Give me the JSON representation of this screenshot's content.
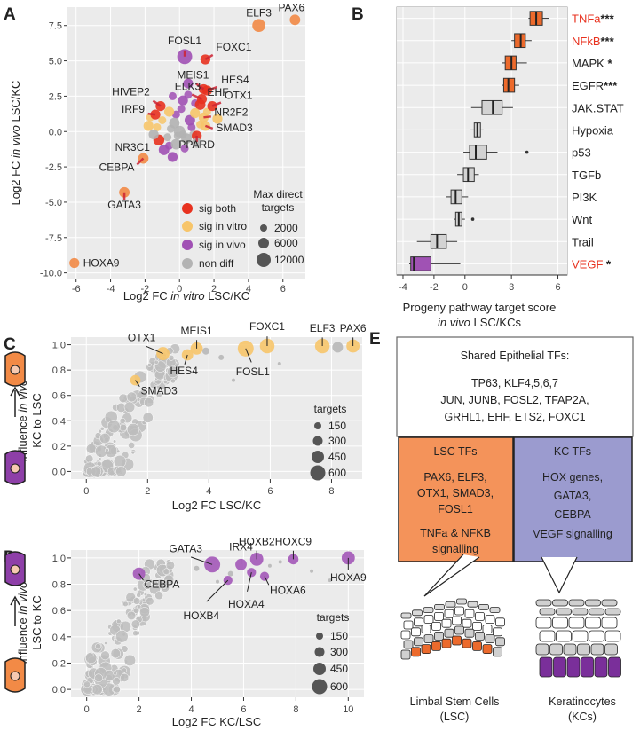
{
  "panels": {
    "a": "A",
    "b": "B",
    "c": "C",
    "d": "D",
    "e": "E"
  },
  "colors": {
    "sig_both": "#e8321f",
    "sig_vitro": "#f7c56a",
    "sig_vivo": "#a050b4",
    "non_diff": "#b3b3b3",
    "orange": "#f28a46",
    "purple": "#a358b8",
    "lsc_box": "#f4935a",
    "kc_box": "#9b9bcf",
    "red_text": "#e8321f"
  },
  "chart_data": [
    {
      "id": "A",
      "type": "scatter",
      "xlabel_pre": "Log2 FC ",
      "xlabel_it": "in vitro",
      "xlabel_post": " LSC/KC",
      "ylabel_pre": "Log2 FC ",
      "ylabel_it": "in vivo",
      "ylabel_post": " LSC/KC",
      "xlim": [
        -6.5,
        7.3
      ],
      "ylim": [
        -10.4,
        8.8
      ],
      "xticks": [
        "-6",
        "-4",
        "-2",
        "0",
        "2",
        "4",
        "6"
      ],
      "xtick_values": [
        -6,
        -4,
        -2,
        0,
        2,
        4,
        6
      ],
      "yticks": [
        "7.5",
        "5.0",
        "2.5",
        "0.0",
        "-2.5",
        "-5.0",
        "-7.5",
        "-10.0"
      ],
      "ytick_values": [
        7.5,
        5.0,
        2.5,
        0.0,
        -2.5,
        -5.0,
        -7.5,
        -10.0
      ],
      "points": [
        {
          "label": "PAX6",
          "x": 6.7,
          "y": 7.9,
          "cat": "orange",
          "s": 3000
        },
        {
          "label": "ELF3",
          "x": 4.6,
          "y": 7.5,
          "cat": "orange",
          "s": 6000
        },
        {
          "label": "FOSL1",
          "x": 0.3,
          "y": 5.3,
          "cat": "vivo",
          "s": 9000
        },
        {
          "label": "FOXC1",
          "x": 1.5,
          "y": 5.1,
          "cat": "both",
          "s": 2500
        },
        {
          "label": "MEIS1",
          "x": 1.4,
          "y": 3.0,
          "cat": "both",
          "s": 2500
        },
        {
          "label": "HES4",
          "x": 1.6,
          "y": 2.9,
          "cat": "both",
          "s": 2500
        },
        {
          "label": "ELK3",
          "x": 1.3,
          "y": 2.3,
          "cat": "both",
          "s": 2500
        },
        {
          "label": "EHF",
          "x": 1.2,
          "y": 1.9,
          "cat": "both",
          "s": 3000
        },
        {
          "label": "OTX1",
          "x": 1.9,
          "y": 1.8,
          "cat": "both",
          "s": 2500
        },
        {
          "label": "NR2F2",
          "x": 1.4,
          "y": 1.0,
          "cat": "vitro",
          "s": 2500
        },
        {
          "label": "SMAD3",
          "x": 1.5,
          "y": 0.4,
          "cat": "vitro",
          "s": 2500
        },
        {
          "label": "PPARD",
          "x": 1.0,
          "y": -0.3,
          "cat": "both",
          "s": 2500
        },
        {
          "label": "HIVEP2",
          "x": -1.1,
          "y": 1.8,
          "cat": "both",
          "s": 2500
        },
        {
          "label": "IRF9",
          "x": -1.4,
          "y": 1.2,
          "cat": "both",
          "s": 2500
        },
        {
          "label": "NR3C1",
          "x": -1.2,
          "y": -0.6,
          "cat": "both",
          "s": 3500
        },
        {
          "label": "CEBPA",
          "x": -2.1,
          "y": -1.9,
          "cat": "orange",
          "s": 3000
        },
        {
          "label": "GATA3",
          "x": -3.2,
          "y": -4.3,
          "cat": "orange",
          "s": 3000
        },
        {
          "label": "HOXA9",
          "x": -6.1,
          "y": -9.3,
          "cat": "orange",
          "s": 2500
        },
        {
          "label": "",
          "x": 0.0,
          "y": 0.0,
          "cat": "non",
          "s": 4000
        },
        {
          "label": "",
          "x": -0.3,
          "y": 0.6,
          "cat": "non",
          "s": 3000
        },
        {
          "label": "",
          "x": 0.4,
          "y": -0.5,
          "cat": "non",
          "s": 3000
        },
        {
          "label": "",
          "x": 0.6,
          "y": 0.8,
          "cat": "vivo",
          "s": 3000
        },
        {
          "label": "",
          "x": -0.6,
          "y": 1.4,
          "cat": "vitro",
          "s": 2500
        },
        {
          "label": "",
          "x": 0.2,
          "y": 2.2,
          "cat": "vivo",
          "s": 2500
        },
        {
          "label": "",
          "x": -1.8,
          "y": 0.4,
          "cat": "vitro",
          "s": 2500
        },
        {
          "label": "",
          "x": -0.9,
          "y": -1.3,
          "cat": "vivo",
          "s": 3000
        },
        {
          "label": "",
          "x": 0.9,
          "y": 1.3,
          "cat": "vitro",
          "s": 2500
        },
        {
          "label": "",
          "x": -0.2,
          "y": -0.9,
          "cat": "non",
          "s": 3000
        },
        {
          "label": "",
          "x": 2.2,
          "y": 0.9,
          "cat": "vitro",
          "s": 2500
        },
        {
          "label": "",
          "x": -1.5,
          "y": -0.2,
          "cat": "non",
          "s": 2500
        },
        {
          "label": "",
          "x": 0.5,
          "y": 3.4,
          "cat": "vivo",
          "s": 2500
        },
        {
          "label": "",
          "x": -0.4,
          "y": -1.8,
          "cat": "vivo",
          "s": 2500
        },
        {
          "label": "",
          "x": 1.0,
          "y": -0.8,
          "cat": "non",
          "s": 2500
        }
      ],
      "legend_color": [
        {
          "label": "sig both",
          "cat": "both"
        },
        {
          "label": "sig in vitro",
          "cat": "vitro"
        },
        {
          "label": "sig in vivo",
          "cat": "vivo"
        },
        {
          "label": "non diff",
          "cat": "non"
        }
      ],
      "legend_size_title_1": "Max direct",
      "legend_size_title_2": "targets",
      "legend_size": [
        "2000",
        "6000",
        "12000"
      ]
    },
    {
      "id": "B",
      "type": "boxplot",
      "xlabel_1": "Progeny pathway target score",
      "xlabel_2_it": "in vivo",
      "xlabel_2_post": " LSC/KCs",
      "xlim": [
        -4.4,
        6.6
      ],
      "xticks": [
        "-4",
        "-2",
        "0",
        "3",
        "6"
      ],
      "xtick_values": [
        -4,
        -2,
        0,
        3,
        6
      ],
      "categories": [
        {
          "name": "TNFa",
          "stars": "***",
          "color": "orange",
          "red": true,
          "min": 4.1,
          "q1": 4.2,
          "med": 4.6,
          "q3": 5.0,
          "max": 5.4
        },
        {
          "name": "NFkB",
          "stars": "***",
          "color": "orange",
          "red": true,
          "min": 3.0,
          "q1": 3.2,
          "med": 3.6,
          "q3": 3.9,
          "max": 4.3
        },
        {
          "name": "MAPK",
          "stars": "*",
          "color": "orange",
          "red": false,
          "min": 2.4,
          "q1": 2.6,
          "med": 3.0,
          "q3": 3.3,
          "max": 4.0
        },
        {
          "name": "EGFR",
          "stars": "***",
          "color": "orange",
          "red": false,
          "min": 2.4,
          "q1": 2.5,
          "med": 2.8,
          "q3": 3.2,
          "max": 3.5
        },
        {
          "name": "JAK.STAT",
          "stars": "",
          "color": "grey",
          "red": false,
          "min": 0.4,
          "q1": 1.1,
          "med": 1.8,
          "q3": 2.4,
          "max": 3.1
        },
        {
          "name": "Hypoxia",
          "stars": "",
          "color": "grey",
          "red": false,
          "min": 0.3,
          "q1": 0.6,
          "med": 0.8,
          "q3": 1.0,
          "max": 1.2
        },
        {
          "name": "p53",
          "stars": "",
          "color": "grey",
          "red": false,
          "min": -0.1,
          "q1": 0.3,
          "med": 0.7,
          "q3": 1.4,
          "max": 2.1,
          "outlier": 4.0
        },
        {
          "name": "TGFb",
          "stars": "",
          "color": "grey",
          "red": false,
          "min": -0.5,
          "q1": -0.1,
          "med": 0.2,
          "q3": 0.6,
          "max": 0.9
        },
        {
          "name": "PI3K",
          "stars": "",
          "color": "grey",
          "red": false,
          "min": -1.2,
          "q1": -0.9,
          "med": -0.6,
          "q3": -0.2,
          "max": 0.2
        },
        {
          "name": "Wnt",
          "stars": "",
          "color": "grey",
          "red": false,
          "min": -0.7,
          "q1": -0.6,
          "med": -0.4,
          "q3": -0.2,
          "max": 0.0,
          "outlier": 0.5
        },
        {
          "name": "Trail",
          "stars": "",
          "color": "grey",
          "red": false,
          "min": -3.1,
          "q1": -2.2,
          "med": -1.8,
          "q3": -1.2,
          "max": -0.5
        },
        {
          "name": "VEGF",
          "stars": "*",
          "color": "purple",
          "red": true,
          "min": -3.6,
          "q1": -3.5,
          "med": -3.3,
          "q3": -2.2,
          "max": -0.3
        }
      ]
    },
    {
      "id": "C",
      "type": "scatter",
      "xlabel": "Log2 FC LSC/KC",
      "ylabel_pre": "influence ",
      "ylabel_it": "in vivo",
      "ylabel_2": "KC to LSC",
      "xlim": [
        -0.5,
        9.0
      ],
      "ylim": [
        -0.06,
        1.06
      ],
      "xticks": [
        "0",
        "2",
        "4",
        "6",
        "8"
      ],
      "xtick_values": [
        0,
        2,
        4,
        6,
        8
      ],
      "yticks": [
        "1.0",
        "0.8",
        "0.6",
        "0.4",
        "0.2",
        "0.0"
      ],
      "ytick_values": [
        1.0,
        0.8,
        0.6,
        0.4,
        0.2,
        0.0
      ],
      "points": [
        {
          "label": "OTX1",
          "x": 2.5,
          "y": 0.93,
          "cat": "vitro",
          "s": 300
        },
        {
          "label": "MEIS1",
          "x": 3.6,
          "y": 0.97,
          "cat": "vitro",
          "s": 250
        },
        {
          "label": "HES4",
          "x": 3.3,
          "y": 0.92,
          "cat": "vitro",
          "s": 200
        },
        {
          "label": "FOXC1",
          "x": 5.9,
          "y": 0.99,
          "cat": "vitro",
          "s": 400
        },
        {
          "label": "FOSL1",
          "x": 5.2,
          "y": 0.97,
          "cat": "vitro",
          "s": 500
        },
        {
          "label": "ELF3",
          "x": 7.7,
          "y": 0.99,
          "cat": "vitro",
          "s": 400
        },
        {
          "label": "PAX6",
          "x": 8.7,
          "y": 0.99,
          "cat": "vitro",
          "s": 300
        },
        {
          "label": "SMAD3",
          "x": 1.6,
          "y": 0.72,
          "cat": "vitro",
          "s": 150
        }
      ],
      "legend_title": "targets",
      "legend_size": [
        "150",
        "300",
        "450",
        "600"
      ]
    },
    {
      "id": "D",
      "type": "scatter",
      "xlabel": "Log2 FC KC/LSC",
      "ylabel_pre": "influence ",
      "ylabel_it": "in vivo",
      "ylabel_2": "LSC to KC",
      "xlim": [
        -0.6,
        10.6
      ],
      "ylim": [
        -0.06,
        1.06
      ],
      "xticks": [
        "0",
        "2",
        "4",
        "6",
        "8",
        "10"
      ],
      "xtick_values": [
        0,
        2,
        4,
        6,
        8,
        10
      ],
      "yticks": [
        "1.0",
        "0.8",
        "0.6",
        "0.4",
        "0.2",
        "0.0"
      ],
      "ytick_values": [
        1.0,
        0.8,
        0.6,
        0.4,
        0.2,
        0.0
      ],
      "points": [
        {
          "label": "GATA3",
          "x": 4.8,
          "y": 0.95,
          "cat": "purple",
          "s": 500
        },
        {
          "label": "IRX4",
          "x": 5.9,
          "y": 0.95,
          "cat": "purple",
          "s": 200
        },
        {
          "label": "HOXB2",
          "x": 6.5,
          "y": 0.99,
          "cat": "purple",
          "s": 300
        },
        {
          "label": "HOXC9",
          "x": 7.9,
          "y": 0.99,
          "cat": "purple",
          "s": 150
        },
        {
          "label": "HOXA9",
          "x": 10.0,
          "y": 1.0,
          "cat": "purple",
          "s": 300
        },
        {
          "label": "CEBPA",
          "x": 2.0,
          "y": 0.88,
          "cat": "purple",
          "s": 250
        },
        {
          "label": "HOXA6",
          "x": 6.8,
          "y": 0.86,
          "cat": "purple",
          "s": 100
        },
        {
          "label": "HOXA4",
          "x": 6.3,
          "y": 0.89,
          "cat": "purple",
          "s": 100
        },
        {
          "label": "HOXB4",
          "x": 5.4,
          "y": 0.83,
          "cat": "purple",
          "s": 100
        }
      ],
      "legend_title": "targets",
      "legend_size": [
        "150",
        "300",
        "450",
        "600"
      ]
    }
  ],
  "panel_e": {
    "shared_title": "Shared Epithelial TFs:",
    "shared_lines": [
      "TP63, KLF4,5,6,7",
      "JUN, JUNB, FOSL2, TFAP2A,",
      "GRHL1, EHF, ETS2, FOXC1"
    ],
    "lsc_title": "LSC TFs",
    "lsc_lines": [
      "PAX6, ELF3,",
      "OTX1, SMAD3,",
      "FOSL1"
    ],
    "lsc_sig_lines": [
      "TNFa & NFKB",
      "signalling"
    ],
    "kc_title": "KC TFs",
    "kc_lines": [
      "HOX genes,",
      "GATA3,",
      "CEBPA",
      "VEGF signalling"
    ],
    "lsc_cells_1": "Limbal Stem Cells",
    "lsc_cells_2": "(LSC)",
    "kc_cells_1": "Keratinocytes",
    "kc_cells_2": "(KCs)"
  }
}
